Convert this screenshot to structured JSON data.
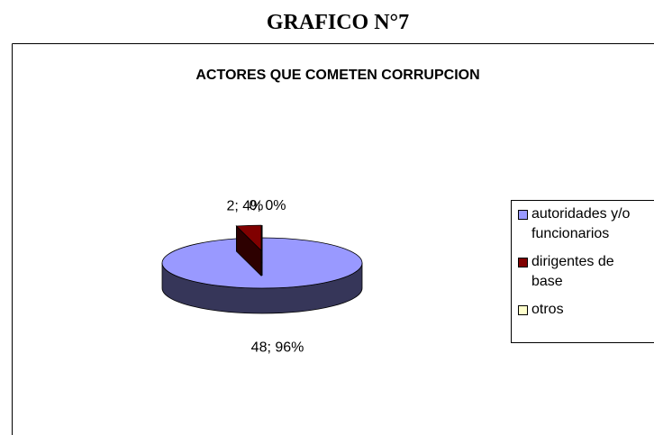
{
  "header": {
    "title": "GRAFICO N°7"
  },
  "chart_data": {
    "type": "pie",
    "title": "ACTORES QUE COMETEN CORRUPCION",
    "categories": [
      "autoridades y/o funcionarios",
      "dirigentes de base",
      "otros"
    ],
    "values": [
      48,
      2,
      0
    ],
    "value_labels": [
      "48; 96%",
      "2; 4%",
      "0; 0%"
    ],
    "colors": [
      "#9999ff",
      "#800000",
      "#ffffcc"
    ],
    "legend": "right"
  }
}
